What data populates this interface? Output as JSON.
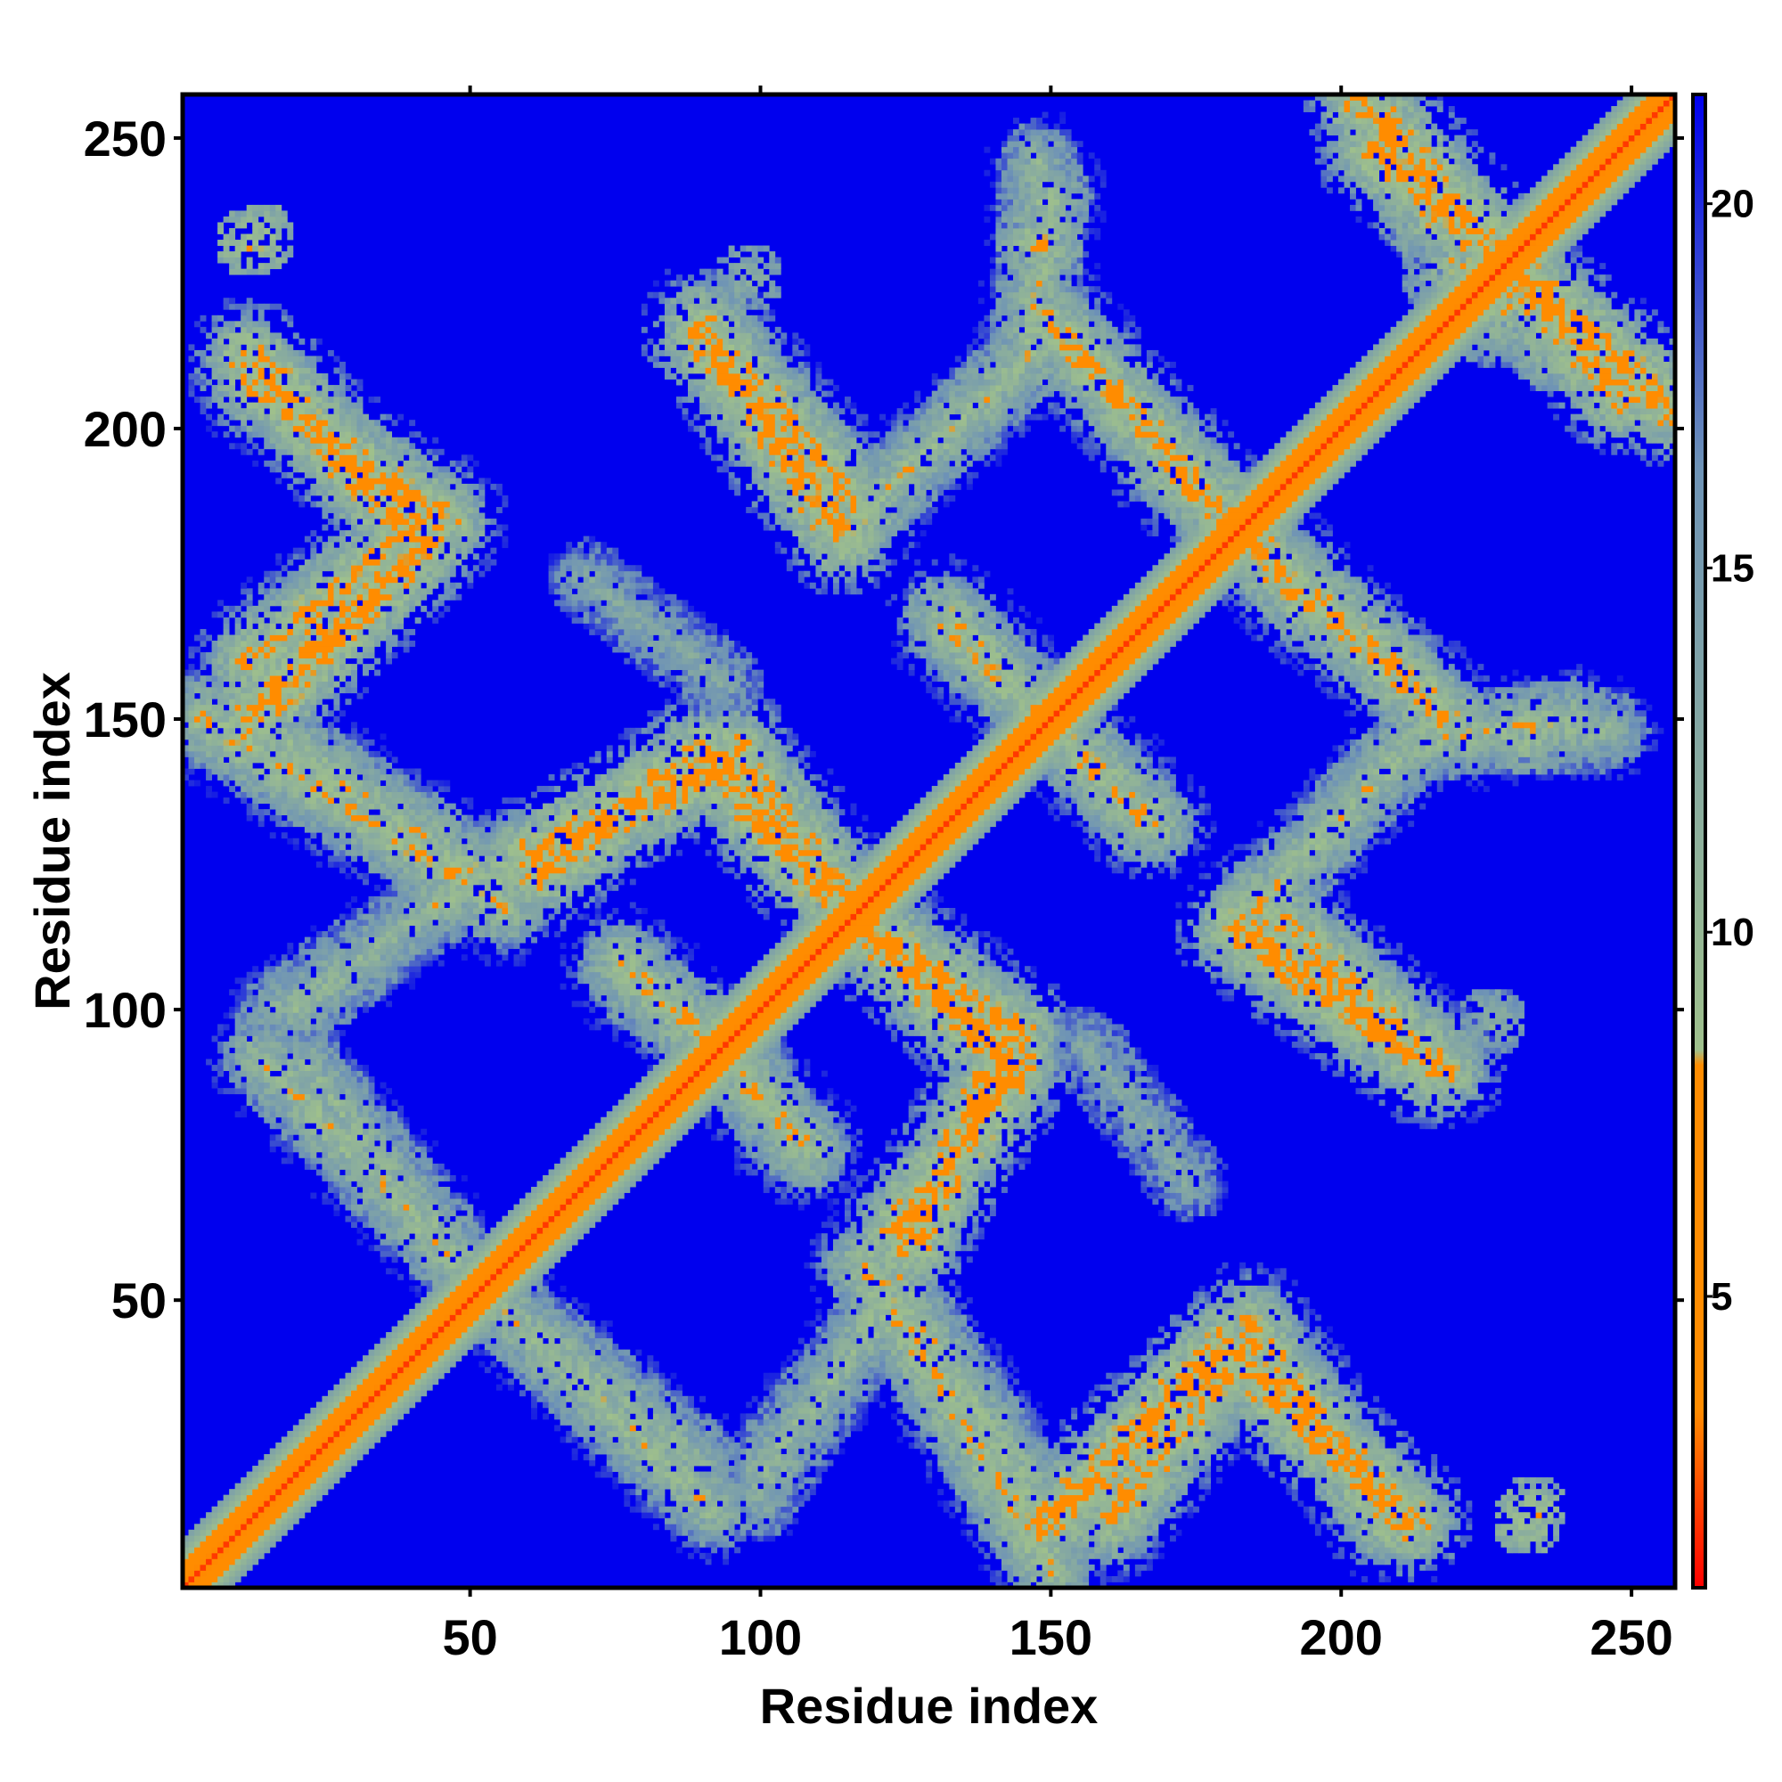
{
  "chart_data": {
    "type": "heatmap",
    "title": "",
    "xlabel": "Residue index",
    "ylabel": "Residue index",
    "x_range": [
      1,
      257
    ],
    "y_range": [
      1,
      257
    ],
    "x_ticks": [
      50,
      100,
      150,
      200,
      250
    ],
    "y_ticks": [
      50,
      100,
      150,
      200,
      250
    ],
    "colorbar": {
      "range": [
        1,
        21.5
      ],
      "ticks": [
        5,
        10,
        15,
        20
      ],
      "colors": {
        "low": "#ff0000",
        "mid_low": "#ff8c00",
        "mid": "#9fc08c",
        "mid_high": "#6e93b6",
        "high": "#0000ee"
      }
    },
    "background_value": 21,
    "diagonal": {
      "value": 2,
      "halfwidth": 8
    },
    "contact_bands": [
      {
        "from": [
          12,
          208
        ],
        "to": [
          46,
          184
        ],
        "value": 8
      },
      {
        "from": [
          12,
          160
        ],
        "to": [
          44,
          186
        ],
        "value": 8
      },
      {
        "from": [
          4,
          150
        ],
        "to": [
          56,
          118
        ],
        "value": 9
      },
      {
        "from": [
          16,
          100
        ],
        "to": [
          54,
          124
        ],
        "value": 12
      },
      {
        "from": [
          22,
          90
        ],
        "to": [
          54,
          50
        ],
        "value": 11
      },
      {
        "from": [
          54,
          50
        ],
        "to": [
          92,
          14
        ],
        "value": 10
      },
      {
        "from": [
          60,
          126
        ],
        "to": [
          96,
          144
        ],
        "value": 7
      },
      {
        "from": [
          96,
          144
        ],
        "to": [
          114,
          120
        ],
        "value": 8
      },
      {
        "from": [
          76,
          108
        ],
        "to": [
          98,
          88
        ],
        "value": 9
      },
      {
        "from": [
          94,
          96
        ],
        "to": [
          104,
          78
        ],
        "value": 10
      },
      {
        "from": [
          120,
          112
        ],
        "to": [
          144,
          90
        ],
        "value": 7
      },
      {
        "from": [
          144,
          90
        ],
        "to": [
          124,
          62
        ],
        "value": 7
      },
      {
        "from": [
          100,
          20
        ],
        "to": [
          118,
          44
        ],
        "value": 11
      },
      {
        "from": [
          118,
          44
        ],
        "to": [
          126,
          58
        ],
        "value": 10
      },
      {
        "from": [
          122,
          54
        ],
        "to": [
          150,
          12
        ],
        "value": 10
      },
      {
        "from": [
          150,
          12
        ],
        "to": [
          180,
          42
        ],
        "value": 7
      },
      {
        "from": [
          180,
          42
        ],
        "to": [
          212,
          12
        ],
        "value": 7
      },
      {
        "from": [
          90,
          218
        ],
        "to": [
          118,
          186
        ],
        "value": 8
      },
      {
        "from": [
          118,
          186
        ],
        "to": [
          146,
          212
        ],
        "value": 10
      },
      {
        "from": [
          146,
          212
        ],
        "to": [
          150,
          240
        ],
        "value": 10
      },
      {
        "from": [
          132,
          166
        ],
        "to": [
          168,
          132
        ],
        "value": 9
      },
      {
        "from": [
          170,
          194
        ],
        "to": [
          218,
          150
        ],
        "value": 8
      },
      {
        "from": [
          182,
          114
        ],
        "to": [
          216,
          90
        ],
        "value": 7
      },
      {
        "from": [
          156,
          94
        ],
        "to": [
          174,
          70
        ],
        "value": 13
      },
      {
        "from": [
          206,
          248
        ],
        "to": [
          256,
          204
        ],
        "value": 7
      },
      {
        "from": [
          222,
          148
        ],
        "to": [
          246,
          148
        ],
        "value": 11
      }
    ],
    "contact_spots": [
      {
        "x": 12,
        "y": 232,
        "radius": 6,
        "value": 9
      },
      {
        "x": 233,
        "y": 14,
        "radius": 6,
        "value": 9
      },
      {
        "x": 148,
        "y": 232,
        "radius": 8,
        "value": 9
      },
      {
        "x": 98,
        "y": 226,
        "radius": 6,
        "value": 12
      },
      {
        "x": 222,
        "y": 228,
        "radius": 12,
        "value": 8
      },
      {
        "x": 238,
        "y": 216,
        "radius": 10,
        "value": 8
      }
    ]
  }
}
